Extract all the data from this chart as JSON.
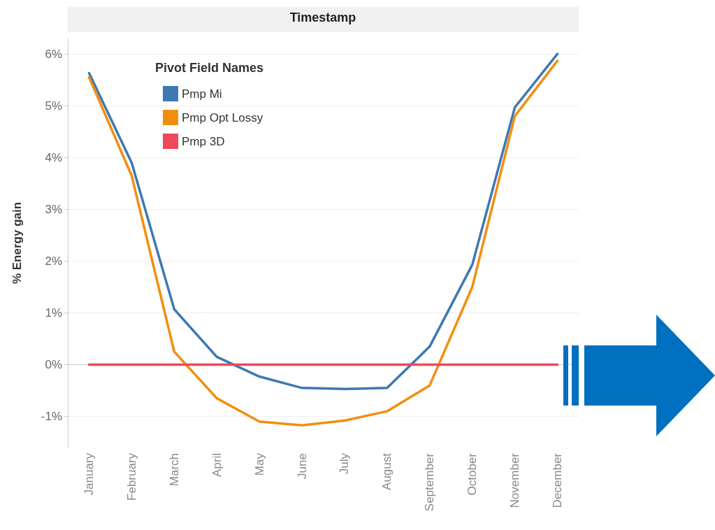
{
  "chart_data": {
    "type": "line",
    "title": "Timestamp",
    "ylabel": "% Energy gain",
    "legend_title": "Pivot Field Names",
    "categories": [
      "January",
      "February",
      "March",
      "April",
      "May",
      "June",
      "July",
      "August",
      "September",
      "October",
      "November",
      "December"
    ],
    "series": [
      {
        "name": "Pmp Mi",
        "color": "#3e78b2",
        "values": [
          5.63,
          3.9,
          1.07,
          0.15,
          -0.23,
          -0.45,
          -0.47,
          -0.45,
          0.35,
          1.93,
          4.97,
          6.0
        ]
      },
      {
        "name": "Pmp Opt Lossy",
        "color": "#f28e0e",
        "values": [
          5.55,
          3.65,
          0.25,
          -0.65,
          -1.1,
          -1.17,
          -1.08,
          -0.9,
          -0.4,
          1.5,
          4.8,
          5.87
        ]
      },
      {
        "name": "Pmp 3D",
        "color": "#f0475a",
        "values": [
          0,
          0,
          0,
          0,
          0,
          0,
          0,
          0,
          0,
          0,
          0,
          0
        ]
      }
    ],
    "ylim": [
      -1.6,
      6.3
    ],
    "yticks": [
      {
        "value": -1,
        "label": "-1%"
      },
      {
        "value": 0,
        "label": "0%"
      },
      {
        "value": 1,
        "label": "1%"
      },
      {
        "value": 2,
        "label": "2%"
      },
      {
        "value": 3,
        "label": "3%"
      },
      {
        "value": 4,
        "label": "4%"
      },
      {
        "value": 5,
        "label": "5%"
      },
      {
        "value": 6,
        "label": "6%"
      }
    ],
    "grid": "y",
    "legend": "top left",
    "marker": "none",
    "line_style": "solid"
  }
}
